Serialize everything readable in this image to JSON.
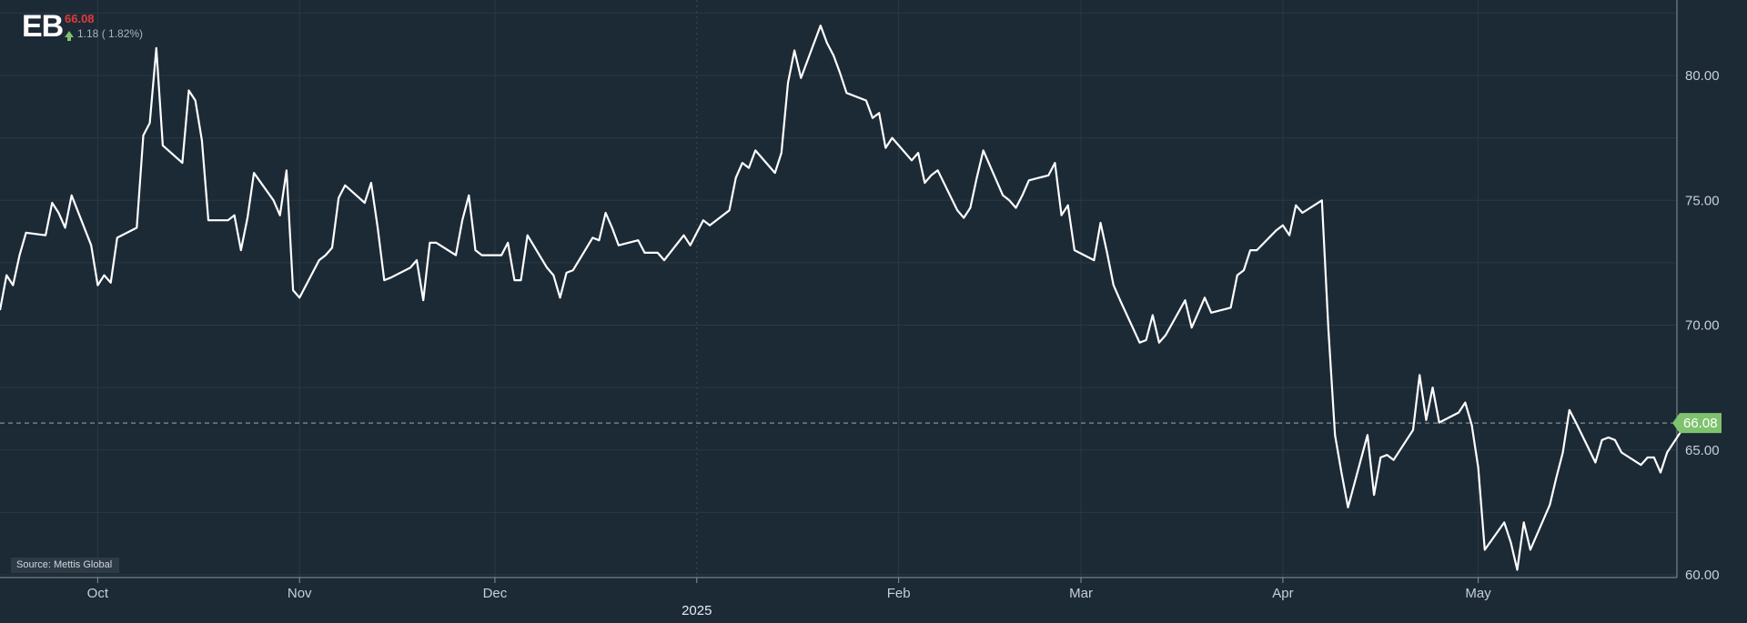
{
  "header": {
    "ticker": "EB",
    "price": "66.08",
    "change": "1.18 ( 1.82%)",
    "price_color": "#e23a3a",
    "change_arrow_color": "#7ec26e",
    "change_icon": "arrow-up-icon"
  },
  "source_label": "Source: Mettis Global",
  "chart_data": {
    "type": "line",
    "title": "",
    "xlabel": "",
    "ylabel": "",
    "x_range": [
      "2024-09-16",
      "2025-05-29"
    ],
    "ylim": [
      59,
      84
    ],
    "y_ticks": [
      "60.00",
      "65.00",
      "70.00",
      "75.00",
      "80.00"
    ],
    "x_ticks": [
      {
        "label": "Oct",
        "date": "2024-10-01"
      },
      {
        "label": "Nov",
        "date": "2024-11-01"
      },
      {
        "label": "Dec",
        "date": "2024-12-01"
      },
      {
        "label": "2025",
        "date": "2025-01-01",
        "major": true
      },
      {
        "label": "Feb",
        "date": "2025-02-01"
      },
      {
        "label": "Mar",
        "date": "2025-03-01"
      },
      {
        "label": "Apr",
        "date": "2025-04-01"
      },
      {
        "label": "May",
        "date": "2025-05-01"
      }
    ],
    "last_value": {
      "label": "66.08",
      "value": 66.08
    },
    "grid": true,
    "colors": {
      "background": "#1c2a36",
      "line": "#ffffff",
      "grid": "#2a3844",
      "last_value_tag": "#7ec26e",
      "axis_text": "#c7cfd6"
    },
    "series": [
      {
        "points": [
          [
            "2024-09-16",
            70.6
          ],
          [
            "2024-09-17",
            72.0
          ],
          [
            "2024-09-18",
            71.6
          ],
          [
            "2024-09-19",
            72.8
          ],
          [
            "2024-09-20",
            73.7
          ],
          [
            "2024-09-23",
            73.6
          ],
          [
            "2024-09-24",
            74.9
          ],
          [
            "2024-09-25",
            74.5
          ],
          [
            "2024-09-26",
            73.9
          ],
          [
            "2024-09-27",
            75.2
          ],
          [
            "2024-09-30",
            73.2
          ],
          [
            "2024-10-01",
            71.6
          ],
          [
            "2024-10-02",
            72.0
          ],
          [
            "2024-10-03",
            71.7
          ],
          [
            "2024-10-04",
            73.5
          ],
          [
            "2024-10-07",
            73.9
          ],
          [
            "2024-10-08",
            77.6
          ],
          [
            "2024-10-09",
            78.1
          ],
          [
            "2024-10-10",
            81.1
          ],
          [
            "2024-10-11",
            77.2
          ],
          [
            "2024-10-14",
            76.5
          ],
          [
            "2024-10-15",
            79.4
          ],
          [
            "2024-10-16",
            79.0
          ],
          [
            "2024-10-17",
            77.4
          ],
          [
            "2024-10-18",
            74.2
          ],
          [
            "2024-10-21",
            74.2
          ],
          [
            "2024-10-22",
            74.4
          ],
          [
            "2024-10-23",
            73.0
          ],
          [
            "2024-10-24",
            74.3
          ],
          [
            "2024-10-25",
            76.1
          ],
          [
            "2024-10-28",
            75.0
          ],
          [
            "2024-10-29",
            74.4
          ],
          [
            "2024-10-30",
            76.2
          ],
          [
            "2024-10-31",
            71.4
          ],
          [
            "2024-11-01",
            71.1
          ],
          [
            "2024-11-04",
            72.6
          ],
          [
            "2024-11-05",
            72.8
          ],
          [
            "2024-11-06",
            73.1
          ],
          [
            "2024-11-07",
            75.1
          ],
          [
            "2024-11-08",
            75.6
          ],
          [
            "2024-11-11",
            74.9
          ],
          [
            "2024-11-12",
            75.7
          ],
          [
            "2024-11-13",
            73.9
          ],
          [
            "2024-11-14",
            71.8
          ],
          [
            "2024-11-15",
            71.9
          ],
          [
            "2024-11-18",
            72.3
          ],
          [
            "2024-11-19",
            72.6
          ],
          [
            "2024-11-20",
            71.0
          ],
          [
            "2024-11-21",
            73.3
          ],
          [
            "2024-11-22",
            73.3
          ],
          [
            "2024-11-25",
            72.8
          ],
          [
            "2024-11-26",
            74.2
          ],
          [
            "2024-11-27",
            75.2
          ],
          [
            "2024-11-28",
            73.0
          ],
          [
            "2024-11-29",
            72.8
          ],
          [
            "2024-12-02",
            72.8
          ],
          [
            "2024-12-03",
            73.3
          ],
          [
            "2024-12-04",
            71.8
          ],
          [
            "2024-12-05",
            71.8
          ],
          [
            "2024-12-06",
            73.6
          ],
          [
            "2024-12-09",
            72.3
          ],
          [
            "2024-12-10",
            72.0
          ],
          [
            "2024-12-11",
            71.1
          ],
          [
            "2024-12-12",
            72.1
          ],
          [
            "2024-12-13",
            72.2
          ],
          [
            "2024-12-16",
            73.5
          ],
          [
            "2024-12-17",
            73.4
          ],
          [
            "2024-12-18",
            74.5
          ],
          [
            "2024-12-19",
            73.9
          ],
          [
            "2024-12-20",
            73.2
          ],
          [
            "2024-12-23",
            73.4
          ],
          [
            "2024-12-24",
            72.9
          ],
          [
            "2024-12-26",
            72.9
          ],
          [
            "2024-12-27",
            72.6
          ],
          [
            "2024-12-30",
            73.6
          ],
          [
            "2024-12-31",
            73.2
          ],
          [
            "2025-01-02",
            74.2
          ],
          [
            "2025-01-03",
            74.0
          ],
          [
            "2025-01-06",
            74.6
          ],
          [
            "2025-01-07",
            75.9
          ],
          [
            "2025-01-08",
            76.5
          ],
          [
            "2025-01-09",
            76.3
          ],
          [
            "2025-01-10",
            77.0
          ],
          [
            "2025-01-13",
            76.1
          ],
          [
            "2025-01-14",
            76.9
          ],
          [
            "2025-01-15",
            79.7
          ],
          [
            "2025-01-16",
            81.0
          ],
          [
            "2025-01-17",
            79.9
          ],
          [
            "2025-01-20",
            82.0
          ],
          [
            "2025-01-21",
            81.3
          ],
          [
            "2025-01-22",
            80.8
          ],
          [
            "2025-01-23",
            80.1
          ],
          [
            "2025-01-24",
            79.3
          ],
          [
            "2025-01-27",
            79.0
          ],
          [
            "2025-01-28",
            78.3
          ],
          [
            "2025-01-29",
            78.5
          ],
          [
            "2025-01-30",
            77.1
          ],
          [
            "2025-01-31",
            77.5
          ],
          [
            "2025-02-03",
            76.6
          ],
          [
            "2025-02-04",
            76.9
          ],
          [
            "2025-02-05",
            75.7
          ],
          [
            "2025-02-06",
            76.0
          ],
          [
            "2025-02-07",
            76.2
          ],
          [
            "2025-02-10",
            74.6
          ],
          [
            "2025-02-11",
            74.3
          ],
          [
            "2025-02-12",
            74.7
          ],
          [
            "2025-02-13",
            75.9
          ],
          [
            "2025-02-14",
            77.0
          ],
          [
            "2025-02-17",
            75.2
          ],
          [
            "2025-02-18",
            75.0
          ],
          [
            "2025-02-19",
            74.7
          ],
          [
            "2025-02-20",
            75.2
          ],
          [
            "2025-02-21",
            75.8
          ],
          [
            "2025-02-24",
            76.0
          ],
          [
            "2025-02-25",
            76.5
          ],
          [
            "2025-02-26",
            74.4
          ],
          [
            "2025-02-27",
            74.8
          ],
          [
            "2025-02-28",
            73.0
          ],
          [
            "2025-03-03",
            72.6
          ],
          [
            "2025-03-04",
            74.1
          ],
          [
            "2025-03-05",
            72.9
          ],
          [
            "2025-03-06",
            71.6
          ],
          [
            "2025-03-07",
            71.0
          ],
          [
            "2025-03-10",
            69.3
          ],
          [
            "2025-03-11",
            69.4
          ],
          [
            "2025-03-12",
            70.4
          ],
          [
            "2025-03-13",
            69.3
          ],
          [
            "2025-03-14",
            69.6
          ],
          [
            "2025-03-17",
            71.0
          ],
          [
            "2025-03-18",
            69.9
          ],
          [
            "2025-03-19",
            70.5
          ],
          [
            "2025-03-20",
            71.1
          ],
          [
            "2025-03-21",
            70.5
          ],
          [
            "2025-03-24",
            70.7
          ],
          [
            "2025-03-25",
            72.0
          ],
          [
            "2025-03-26",
            72.2
          ],
          [
            "2025-03-27",
            73.0
          ],
          [
            "2025-03-28",
            73.0
          ],
          [
            "2025-03-31",
            73.8
          ],
          [
            "2025-04-01",
            74.0
          ],
          [
            "2025-04-02",
            73.6
          ],
          [
            "2025-04-03",
            74.8
          ],
          [
            "2025-04-04",
            74.5
          ],
          [
            "2025-04-07",
            75.0
          ],
          [
            "2025-04-08",
            69.8
          ],
          [
            "2025-04-09",
            65.6
          ],
          [
            "2025-04-10",
            64.1
          ],
          [
            "2025-04-11",
            62.7
          ],
          [
            "2025-04-14",
            65.6
          ],
          [
            "2025-04-15",
            63.2
          ],
          [
            "2025-04-16",
            64.7
          ],
          [
            "2025-04-17",
            64.8
          ],
          [
            "2025-04-18",
            64.6
          ],
          [
            "2025-04-21",
            65.8
          ],
          [
            "2025-04-22",
            68.0
          ],
          [
            "2025-04-23",
            66.2
          ],
          [
            "2025-04-24",
            67.5
          ],
          [
            "2025-04-25",
            66.1
          ],
          [
            "2025-04-28",
            66.5
          ],
          [
            "2025-04-29",
            66.9
          ],
          [
            "2025-04-30",
            66.0
          ],
          [
            "2025-05-01",
            64.3
          ],
          [
            "2025-05-02",
            61.0
          ],
          [
            "2025-05-05",
            62.1
          ],
          [
            "2025-05-06",
            61.3
          ],
          [
            "2025-05-07",
            60.2
          ],
          [
            "2025-05-08",
            62.1
          ],
          [
            "2025-05-09",
            61.0
          ],
          [
            "2025-05-12",
            62.8
          ],
          [
            "2025-05-13",
            63.9
          ],
          [
            "2025-05-14",
            64.9
          ],
          [
            "2025-05-15",
            66.6
          ],
          [
            "2025-05-16",
            66.1
          ],
          [
            "2025-05-19",
            64.5
          ],
          [
            "2025-05-20",
            65.4
          ],
          [
            "2025-05-21",
            65.5
          ],
          [
            "2025-05-22",
            65.4
          ],
          [
            "2025-05-23",
            64.9
          ],
          [
            "2025-05-26",
            64.4
          ],
          [
            "2025-05-27",
            64.7
          ],
          [
            "2025-05-28",
            64.7
          ],
          [
            "2025-05-29",
            64.1
          ],
          [
            "2025-05-30",
            64.9
          ],
          [
            "2025-06-02",
            66.08
          ]
        ]
      }
    ]
  }
}
